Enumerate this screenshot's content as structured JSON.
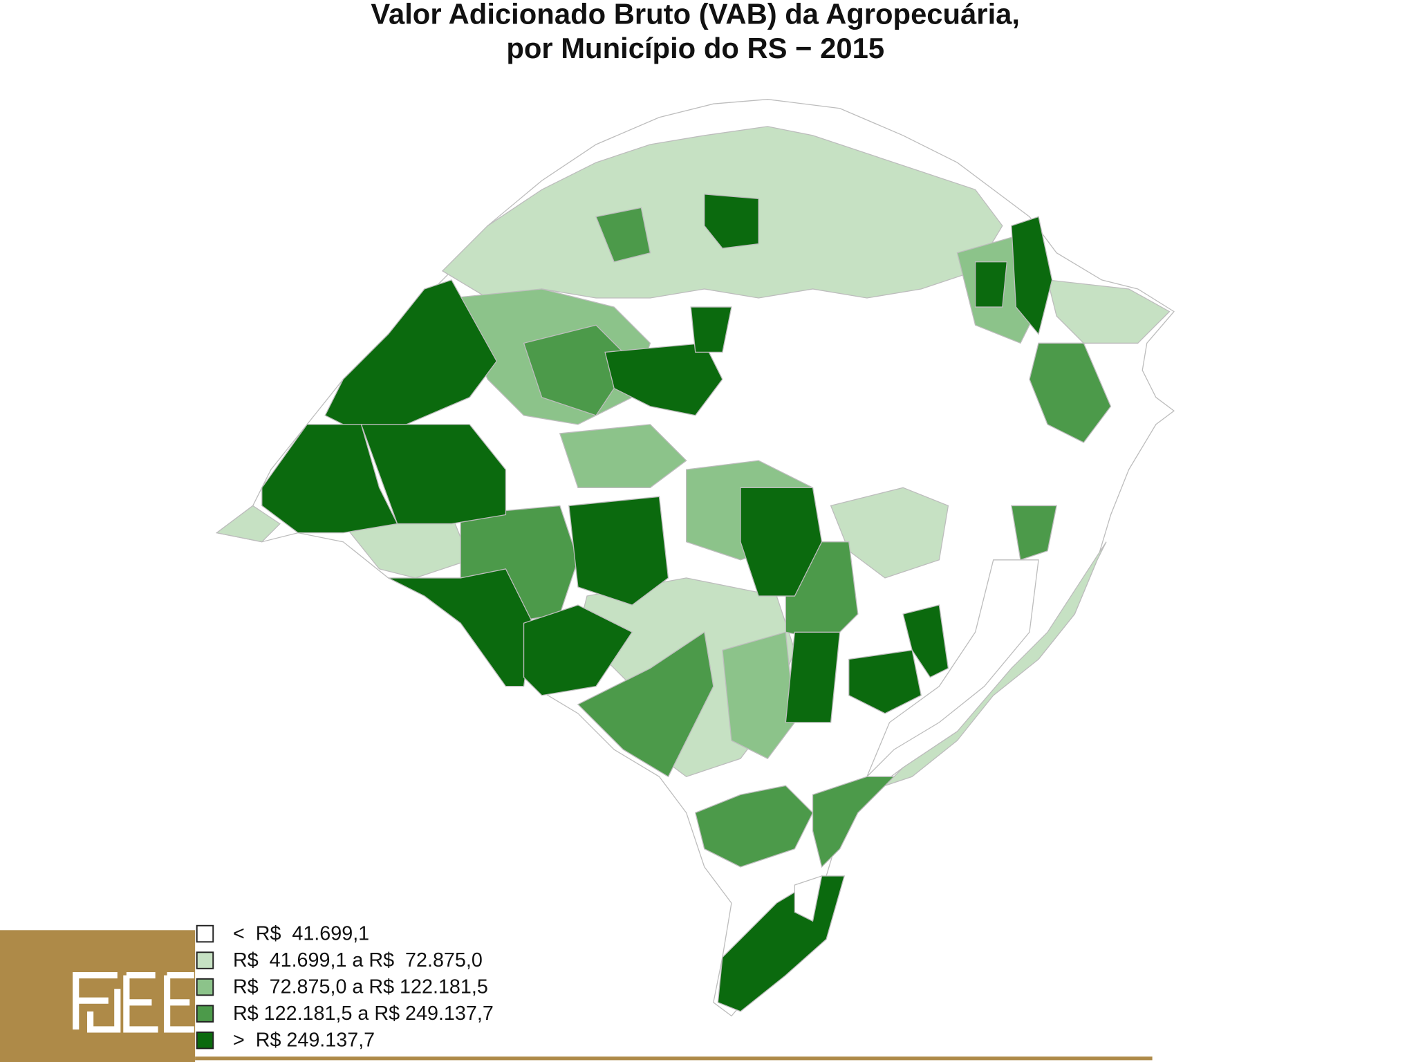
{
  "title": [
    "Valor Adicionado Bruto (VAB) da Agropecuária,",
    "por Município do RS − 2015"
  ],
  "legend": [
    {
      "label": "<  R$  41.699,1",
      "color": "#ffffff"
    },
    {
      "label": "R$  41.699,1 a R$  72.875,0",
      "color": "#c6e1c3"
    },
    {
      "label": "R$  72.875,0 a R$ 122.181,5",
      "color": "#8cc38a"
    },
    {
      "label": "R$ 122.181,5 a R$ 249.137,7",
      "color": "#4c9a4a"
    },
    {
      "label": ">  R$ 249.137,7",
      "color": "#0b6a0e"
    }
  ]
}
